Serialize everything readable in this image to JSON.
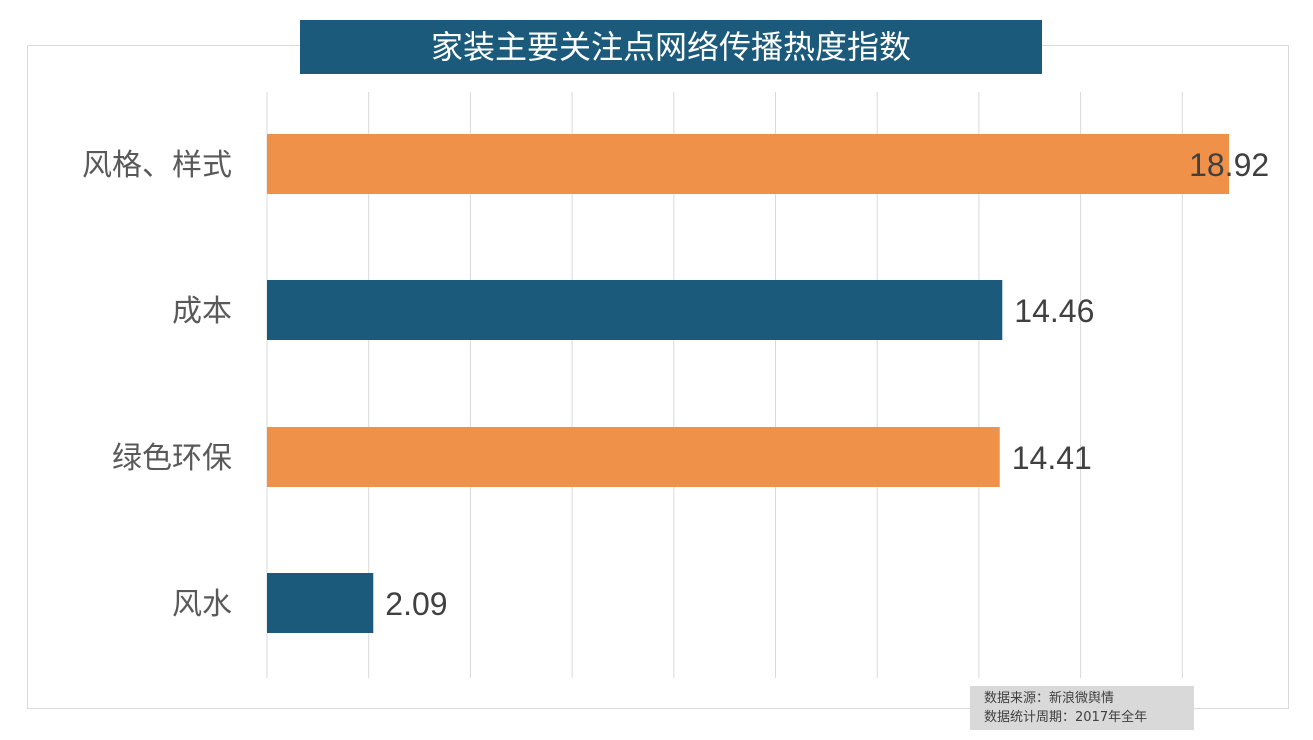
{
  "chart_data": {
    "type": "bar",
    "orientation": "horizontal",
    "title": "家装主要关注点网络传播热度指数",
    "categories": [
      "风格、样式",
      "成本",
      "绿色环保",
      "风水"
    ],
    "values": [
      18.92,
      14.46,
      14.41,
      2.09
    ],
    "data_labels": [
      "18.92",
      "14.46",
      "14.41",
      "2.09"
    ],
    "colors": [
      "#f0914a",
      "#1b5a7a",
      "#f0914a",
      "#1b5a7a"
    ],
    "xlim": [
      0,
      20
    ],
    "grid": true,
    "xlabel": "",
    "ylabel": ""
  },
  "source": {
    "line1": "数据来源：新浪微舆情",
    "line2": "数据统计周期：2017年全年"
  }
}
